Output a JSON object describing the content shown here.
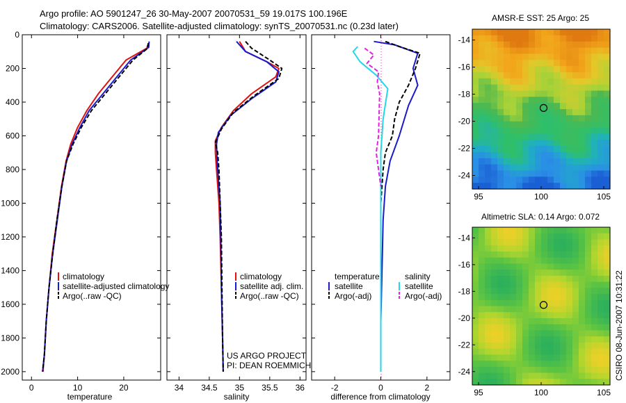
{
  "header": {
    "line1": "Argo profile: AO 5901247_26 30-May-2007 20070531_59 19.017S 100.196E",
    "line2": "Climatology: CARS2006. Satellite-adjusted climatology: synTS_20070531.nc (0.23d later)"
  },
  "colors": {
    "climatology": "#dd1111",
    "satellite": "#1a1acc",
    "argo": "#000000",
    "satellite_salinity": "#22d8e6",
    "argo_adj_salinity": "#e51ee5"
  },
  "chart_data": [
    {
      "type": "line",
      "xlabel": "temperature",
      "xlim": [
        -2,
        28
      ],
      "ylim": [
        2050,
        0
      ],
      "xticks": [
        0,
        10,
        20
      ],
      "yticks": [
        0,
        200,
        400,
        600,
        800,
        1000,
        1200,
        1400,
        1600,
        1800,
        2000
      ],
      "legend": [
        "climatology",
        "satellite-adjusted climatology",
        "Argo(..raw -QC)"
      ],
      "series": [
        {
          "name": "climatology",
          "color": "#dd1111",
          "points": [
            [
              25.2,
              60
            ],
            [
              25.0,
              80
            ],
            [
              20.5,
              150
            ],
            [
              17.5,
              250
            ],
            [
              14.5,
              350
            ],
            [
              12.0,
              450
            ],
            [
              10.0,
              550
            ],
            [
              8.5,
              650
            ],
            [
              7.5,
              750
            ],
            [
              6.5,
              900
            ],
            [
              5.5,
              1100
            ],
            [
              4.5,
              1300
            ],
            [
              3.8,
              1500
            ],
            [
              3.2,
              1700
            ],
            [
              2.8,
              1900
            ],
            [
              2.5,
              2000
            ]
          ]
        },
        {
          "name": "satellite-adjusted climatology",
          "color": "#1a1acc",
          "points": [
            [
              25.5,
              40
            ],
            [
              25.4,
              75
            ],
            [
              21.5,
              150
            ],
            [
              18.5,
              250
            ],
            [
              15.5,
              350
            ],
            [
              12.5,
              450
            ],
            [
              10.5,
              550
            ],
            [
              8.8,
              650
            ],
            [
              7.6,
              750
            ],
            [
              6.6,
              900
            ],
            [
              5.6,
              1100
            ],
            [
              4.6,
              1300
            ],
            [
              3.8,
              1500
            ],
            [
              3.2,
              1700
            ],
            [
              2.8,
              1900
            ],
            [
              2.4,
              2000
            ]
          ]
        },
        {
          "name": "Argo(..raw -QC)",
          "color": "#000000",
          "dashed": true,
          "points": [
            [
              25.3,
              50
            ],
            [
              25.2,
              80
            ],
            [
              22.0,
              150
            ],
            [
              19.0,
              250
            ],
            [
              16.0,
              350
            ],
            [
              13.0,
              450
            ],
            [
              10.8,
              550
            ],
            [
              9.0,
              650
            ],
            [
              7.6,
              750
            ],
            [
              6.6,
              900
            ],
            [
              5.5,
              1100
            ],
            [
              4.6,
              1300
            ],
            [
              3.8,
              1500
            ],
            [
              3.2,
              1700
            ],
            [
              2.8,
              1900
            ],
            [
              2.4,
              2000
            ]
          ]
        }
      ]
    },
    {
      "type": "line",
      "xlabel": "salinity",
      "xlim": [
        33.8,
        36.1
      ],
      "ylim": [
        2050,
        0
      ],
      "xticks": [
        34,
        34.5,
        35,
        35.5,
        36
      ],
      "legend": [
        "climatology",
        "satellite adj. clim.",
        "Argo(..raw -QC)"
      ],
      "series": [
        {
          "name": "climatology",
          "color": "#dd1111",
          "points": [
            [
              35.0,
              40
            ],
            [
              35.1,
              100
            ],
            [
              35.45,
              160
            ],
            [
              35.65,
              200
            ],
            [
              35.6,
              250
            ],
            [
              35.2,
              350
            ],
            [
              34.9,
              450
            ],
            [
              34.7,
              550
            ],
            [
              34.6,
              630
            ],
            [
              34.6,
              700
            ],
            [
              34.62,
              800
            ],
            [
              34.66,
              1000
            ],
            [
              34.68,
              1200
            ],
            [
              34.7,
              1500
            ],
            [
              34.72,
              1800
            ],
            [
              34.73,
              2000
            ]
          ]
        },
        {
          "name": "satellite adj. clim.",
          "color": "#1a1acc",
          "points": [
            [
              34.95,
              40
            ],
            [
              35.1,
              100
            ],
            [
              35.45,
              160
            ],
            [
              35.65,
              220
            ],
            [
              35.6,
              280
            ],
            [
              35.2,
              380
            ],
            [
              34.85,
              480
            ],
            [
              34.65,
              580
            ],
            [
              34.62,
              650
            ],
            [
              34.63,
              750
            ],
            [
              34.65,
              850
            ],
            [
              34.68,
              1000
            ],
            [
              34.69,
              1200
            ],
            [
              34.7,
              1500
            ],
            [
              34.72,
              1800
            ],
            [
              34.73,
              2000
            ]
          ]
        },
        {
          "name": "Argo(..raw -QC)",
          "color": "#000000",
          "dashed": true,
          "points": [
            [
              35.1,
              40
            ],
            [
              35.2,
              80
            ],
            [
              35.5,
              150
            ],
            [
              35.7,
              200
            ],
            [
              35.65,
              260
            ],
            [
              35.25,
              360
            ],
            [
              34.9,
              460
            ],
            [
              34.7,
              560
            ],
            [
              34.6,
              640
            ],
            [
              34.64,
              700
            ],
            [
              34.66,
              800
            ],
            [
              34.68,
              1000
            ],
            [
              34.7,
              1200
            ],
            [
              34.71,
              1500
            ],
            [
              34.72,
              1800
            ],
            [
              34.73,
              2000
            ]
          ]
        }
      ],
      "annotation": [
        "US ARGO PROJECT",
        "PI: DEAN ROEMMICH"
      ]
    },
    {
      "type": "line",
      "xlabel": "difference from climatology",
      "xlim": [
        -3.0,
        3.0
      ],
      "ylim": [
        2050,
        0
      ],
      "xticks": [
        -2,
        0,
        2
      ],
      "legend_groups": [
        {
          "title": "temperature",
          "entries": [
            "satellite",
            "Argo(-adj)"
          ]
        },
        {
          "title": "salinity",
          "entries": [
            "satellite",
            "Argo(-adj)"
          ]
        }
      ],
      "series": [
        {
          "name": "temperature satellite",
          "color": "#1a1acc",
          "points": [
            [
              -0.3,
              40
            ],
            [
              0.6,
              60
            ],
            [
              1.6,
              110
            ],
            [
              1.4,
              200
            ],
            [
              1.6,
              300
            ],
            [
              1.2,
              420
            ],
            [
              0.8,
              600
            ],
            [
              0.4,
              750
            ],
            [
              0.2,
              900
            ],
            [
              0.1,
              1100
            ],
            [
              0.05,
              1400
            ],
            [
              0.0,
              1700
            ],
            [
              0.0,
              2000
            ]
          ]
        },
        {
          "name": "temperature Argo(-adj)",
          "color": "#000000",
          "dashed": true,
          "points": [
            [
              0.2,
              40
            ],
            [
              0.8,
              70
            ],
            [
              1.7,
              110
            ],
            [
              1.5,
              200
            ],
            [
              1.2,
              300
            ],
            [
              0.8,
              400
            ],
            [
              0.6,
              500
            ],
            [
              0.5,
              600
            ],
            [
              0.2,
              700
            ],
            [
              0.1,
              800
            ],
            [
              0.05,
              900
            ],
            [
              0.0,
              1000
            ]
          ]
        },
        {
          "name": "salinity satellite",
          "color": "#22d8e6",
          "points": [
            [
              -1.0,
              70
            ],
            [
              -1.2,
              100
            ],
            [
              -0.9,
              160
            ],
            [
              -0.2,
              240
            ],
            [
              0.3,
              320
            ],
            [
              0.1,
              500
            ],
            [
              0.0,
              700
            ],
            [
              0.0,
              1000
            ],
            [
              0.0,
              1500
            ],
            [
              0.0,
              2000
            ]
          ]
        },
        {
          "name": "salinity Argo(-adj)",
          "color": "#e51ee5",
          "dashed": true,
          "points": [
            [
              -0.7,
              80
            ],
            [
              -0.3,
              120
            ],
            [
              -0.6,
              170
            ],
            [
              -0.1,
              220
            ],
            [
              -0.15,
              280
            ],
            [
              -0.05,
              350
            ],
            [
              -0.1,
              600
            ],
            [
              -0.2,
              700
            ],
            [
              -0.1,
              800
            ],
            [
              0.0,
              900
            ]
          ]
        }
      ]
    },
    {
      "type": "heatmap",
      "title": "AMSR-E SST: 25 Argo: 25",
      "xlim": [
        94.5,
        105.5
      ],
      "ylim": [
        -25,
        -13.2
      ],
      "xticks": [
        95,
        100,
        105
      ],
      "yticks": [
        -14,
        -16,
        -18,
        -20,
        -22,
        -24
      ],
      "marker": {
        "lon": 100.196,
        "lat": -19.017
      },
      "color_by_latitude": [
        [
          -13.2,
          "#e07a10"
        ],
        [
          -15,
          "#f2a61b"
        ],
        [
          -16.5,
          "#e3c92a"
        ],
        [
          -18,
          "#a7d237"
        ],
        [
          -19,
          "#4fb84f"
        ],
        [
          -21,
          "#2fbf6a"
        ],
        [
          -22.5,
          "#1fb0c0"
        ],
        [
          -24,
          "#2a8fe6"
        ],
        [
          -25,
          "#1b5fd5"
        ]
      ]
    },
    {
      "type": "heatmap",
      "title": "Altimetric SLA: 0.14 Argo: 0.072",
      "xlim": [
        94.5,
        105.5
      ],
      "ylim": [
        -25,
        -13.2
      ],
      "xticks": [
        95,
        100,
        105
      ],
      "yticks": [
        -14,
        -16,
        -18,
        -20,
        -22,
        -24
      ],
      "marker": {
        "lon": 100.196,
        "lat": -19.017
      },
      "side_label": "CSIRO 08-Jun-2007 10:31:22"
    }
  ]
}
